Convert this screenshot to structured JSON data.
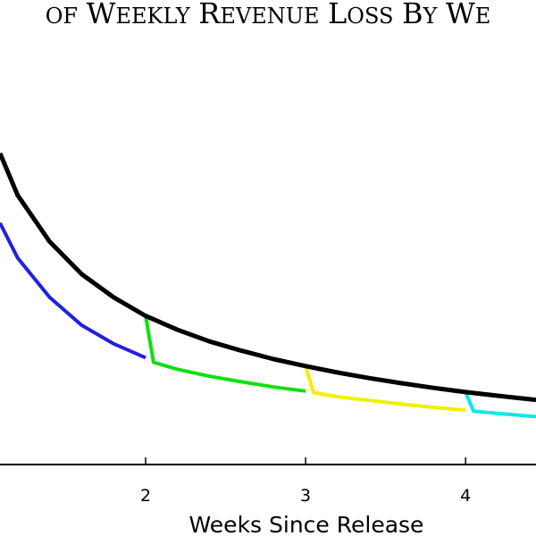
{
  "chart_data": {
    "type": "line",
    "title": "of Weekly Revenue Loss By We",
    "xlabel": "Weeks Since Release",
    "ylabel": "",
    "x_ticks": [
      2,
      3,
      4
    ],
    "xlim": [
      1.09,
      4.44
    ],
    "ylim": [
      0,
      1.0
    ],
    "grid": false,
    "legend": "none",
    "series": [
      {
        "color": "#000000",
        "x": [
          1.09,
          1.2,
          1.4,
          1.6,
          1.8,
          2.0,
          2.2,
          2.4,
          2.6,
          2.8,
          3.0,
          3.2,
          3.4,
          3.6,
          3.8,
          4.0,
          4.2,
          4.44
        ],
        "y": [
          0.67,
          0.58,
          0.48,
          0.41,
          0.36,
          0.32,
          0.29,
          0.265,
          0.245,
          0.227,
          0.212,
          0.198,
          0.186,
          0.175,
          0.165,
          0.156,
          0.148,
          0.139
        ]
      },
      {
        "color": "#2020e0",
        "x": [
          1.09,
          1.2,
          1.4,
          1.6,
          1.8,
          2.0
        ],
        "y": [
          0.52,
          0.445,
          0.36,
          0.3,
          0.26,
          0.23
        ]
      },
      {
        "color": "#10e010",
        "x": [
          2.0,
          2.05,
          2.2,
          2.4,
          2.6,
          2.8,
          3.0
        ],
        "y": [
          0.32,
          0.22,
          0.205,
          0.19,
          0.178,
          0.167,
          0.158
        ]
      },
      {
        "color": "#f0f000",
        "x": [
          3.0,
          3.05,
          3.2,
          3.4,
          3.6,
          3.8,
          4.0
        ],
        "y": [
          0.212,
          0.155,
          0.146,
          0.138,
          0.13,
          0.123,
          0.117
        ]
      },
      {
        "color": "#10e8e8",
        "x": [
          4.0,
          4.05,
          4.2,
          4.44
        ],
        "y": [
          0.156,
          0.115,
          0.11,
          0.103
        ]
      }
    ]
  }
}
